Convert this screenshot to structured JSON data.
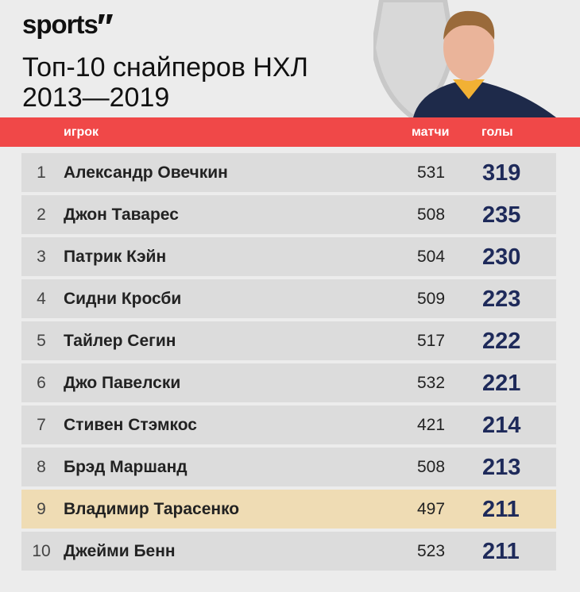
{
  "header": {
    "logo": "sports",
    "title": [
      "Топ-10 снайперов НХЛ",
      "2013—2019"
    ]
  },
  "table": {
    "columns": [
      "игрок",
      "матчи",
      "голы"
    ],
    "rows": [
      [
        1,
        "Александр Овечкин",
        531,
        319
      ],
      [
        2,
        "Джон Таварес",
        508,
        235
      ],
      [
        3,
        "Патрик Кэйн",
        504,
        230
      ],
      [
        4,
        "Сидни Кросби",
        509,
        223
      ],
      [
        5,
        "Тайлер Сегин",
        517,
        222
      ],
      [
        6,
        "Джо Павелски",
        532,
        221
      ],
      [
        7,
        "Стивен Стэмкос",
        421,
        214
      ],
      [
        8,
        "Брэд Маршанд",
        508,
        213
      ],
      [
        9,
        "Владимир Тарасенко",
        497,
        211
      ],
      [
        10,
        "Джейми Бенн",
        523,
        211
      ]
    ]
  }
}
